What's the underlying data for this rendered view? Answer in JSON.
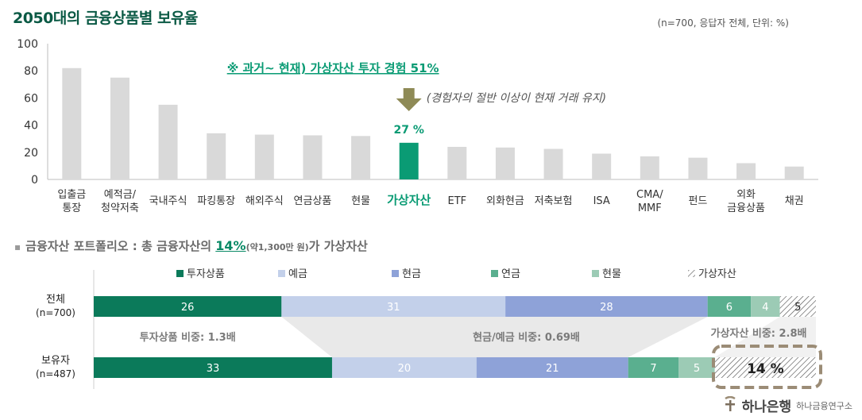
{
  "header": {
    "title": "2050대의 금융상품별 보유율",
    "note": "(n=700, 응답자 전체, 단위: %)"
  },
  "chart_data": [
    {
      "type": "bar",
      "title": "2050대의 금융상품별 보유율",
      "categories": [
        "입출금\n통장",
        "예적금/\n청약저축",
        "국내주식",
        "파킹통장",
        "해외주식",
        "연금상품",
        "현물",
        "가상자산",
        "ETF",
        "외화현금",
        "저축보험",
        "ISA",
        "CMA/\nMMF",
        "펀드",
        "외화\n금융상품",
        "채권"
      ],
      "values": [
        82,
        75,
        55,
        34,
        33,
        32.5,
        32,
        27,
        24,
        23.5,
        22.5,
        19,
        17,
        16,
        12,
        9.5
      ],
      "ylim": [
        0,
        100
      ],
      "yticks": [
        0,
        20,
        40,
        60,
        80,
        100
      ],
      "highlight_index": 7,
      "highlight_label": "27 %",
      "bar_color": "#d9d9d9",
      "highlight_color": "#0a9b74",
      "annotation": "※ 과거~ 현재) 가상자산 투자 경험 51%",
      "annotation_sub": "(경험자의 절반 이상이 현재 거래 유지)"
    },
    {
      "type": "bar",
      "stacked": "horizontal",
      "legend": [
        "투자상품",
        "예금",
        "현금",
        "연금",
        "현물",
        "가상자산"
      ],
      "colors": [
        "#0b7a5a",
        "#c3d0ea",
        "#8ea2d8",
        "#5aaf8f",
        "#9ccbb5",
        "hatch"
      ],
      "rows": [
        {
          "label": "전체\n(n=700)",
          "values": [
            26,
            31,
            28,
            6,
            4,
            5
          ]
        },
        {
          "label": "보유자\n(n=487)",
          "values": [
            33,
            20,
            21,
            7,
            5,
            14
          ]
        }
      ],
      "highlight_label": "14 %",
      "comparisons": [
        "투자상품 비중: 1.3배",
        "현금/예금 비중: 0.69배",
        "가상자산 비중: 2.8배"
      ]
    }
  ],
  "section2": {
    "bullet": "▪",
    "prefix": "금융자산 포트폴리오 : 총 금융자산의 ",
    "highlight": "14%",
    "small": "(약1,300만 원)",
    "suffix": "가 가상자산"
  },
  "logo": {
    "name": "하나은행",
    "sub": "하나금융연구소"
  }
}
